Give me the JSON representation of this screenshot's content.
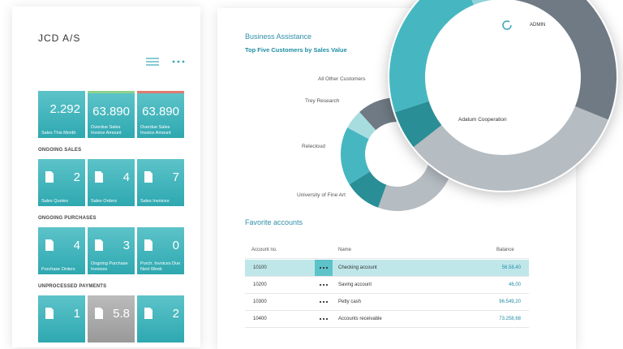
{
  "company": "JCD A/S",
  "kpi_tiles": [
    {
      "value": "2.292",
      "label": "Sales This Month"
    },
    {
      "value": "63.890",
      "label": "Overdue Sales Invoice Amount"
    },
    {
      "value": "63.890",
      "label": "Overdue Sales Invoice Amount"
    }
  ],
  "sections": [
    {
      "title": "ONGOING SALES",
      "tiles": [
        {
          "value": "2",
          "label": "Sales Quotes"
        },
        {
          "value": "4",
          "label": "Sales Orders"
        },
        {
          "value": "7",
          "label": "Sales Invoices"
        }
      ]
    },
    {
      "title": "ONGOING PURCHASES",
      "tiles": [
        {
          "value": "4",
          "label": "Purchase Orders"
        },
        {
          "value": "3",
          "label": "Ongoing Purchase Invoices"
        },
        {
          "value": "0",
          "label": "Purch. Invoices Due Next Week"
        }
      ]
    },
    {
      "title": "UNPROCESSED PAYMENTS",
      "tiles": [
        {
          "value": "1"
        },
        {
          "value": "5.8"
        },
        {
          "value": "2"
        }
      ]
    }
  ],
  "assistant": {
    "menu": "Business Assistance",
    "chart_title": "Top Five Customers by Sales Value",
    "chart_labels": [
      "All Other Customers",
      "Trey Research",
      "Relecloud",
      "University of Fine Art",
      "Adatum Cooperation"
    ]
  },
  "user": "ADMIN",
  "favorites": {
    "title": "Favorite accounts",
    "columns": [
      "Account no.",
      "Name",
      "Balance"
    ],
    "rows": [
      [
        "10100",
        "Checking account",
        "56.58,40"
      ],
      [
        "10200",
        "Saving account",
        "46,00"
      ],
      [
        "10300",
        "Petty cash",
        "96.549,20"
      ],
      [
        "10400",
        "Accounts receivable",
        "73.258,68"
      ]
    ]
  }
}
